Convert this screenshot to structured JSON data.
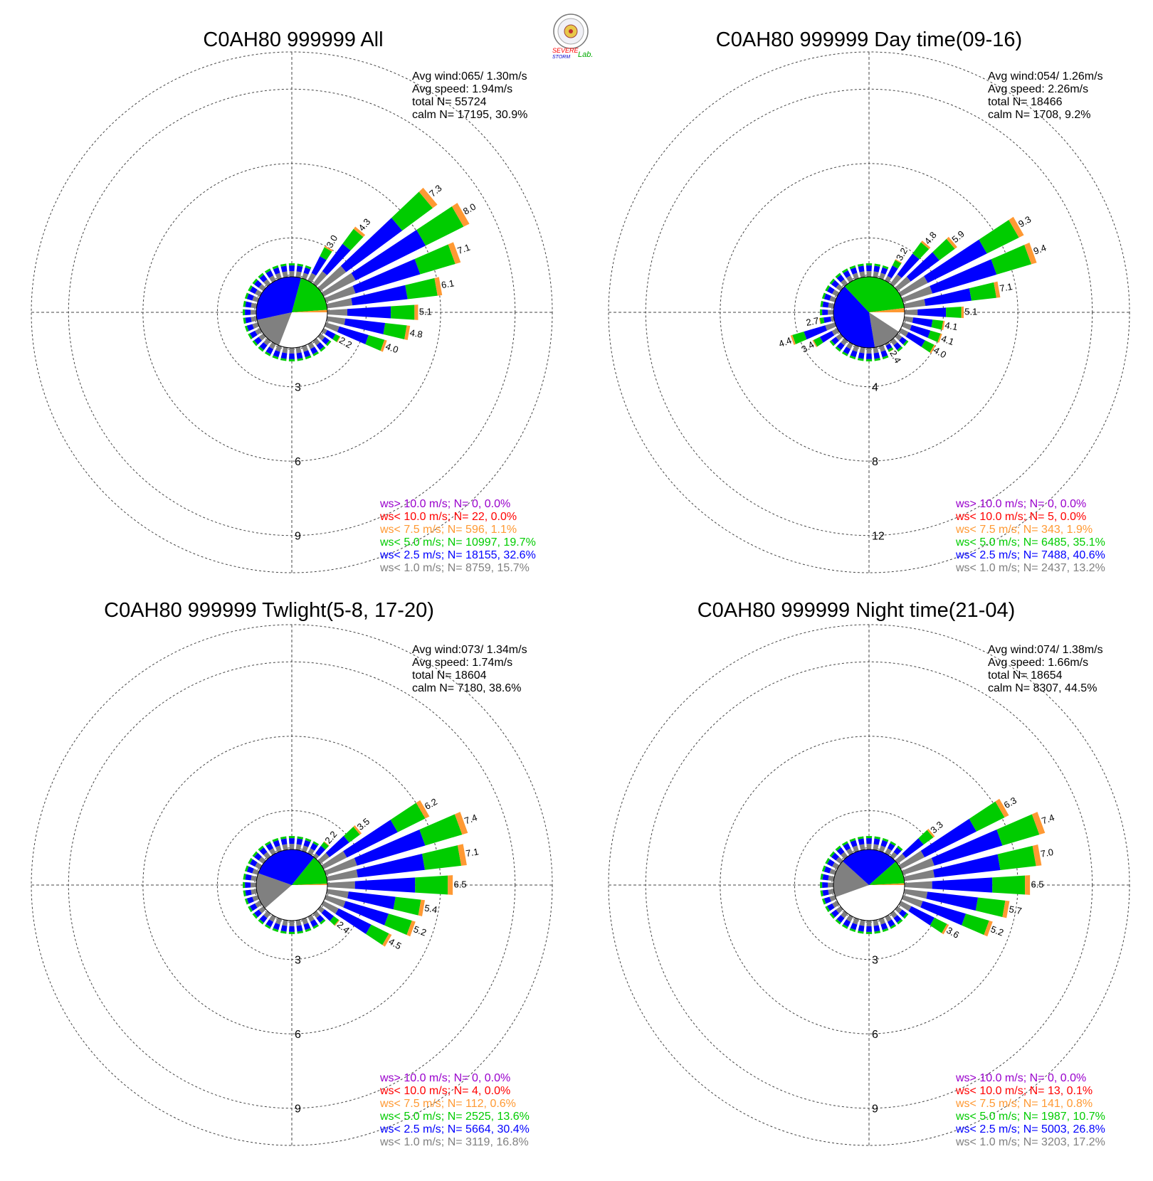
{
  "colors": {
    "calm": "#ffffff",
    "lt1": "#808080",
    "lt2_5": "#0000ff",
    "lt5": "#00cc00",
    "lt7_5": "#ff9933",
    "lt10": "#ff0000",
    "gt10": "#9900cc",
    "grid": "#444444"
  },
  "logo": {
    "text_severe": "SEVERE",
    "text_storm": "STORM",
    "text_lab": "Lab."
  },
  "chart_data": [
    {
      "type": "wind-rose",
      "title": "C0AH80 999999 All",
      "stats": [
        "Avg wind:065/ 1.30m/s",
        "Avg speed: 1.94m/s",
        "total N=       55724",
        "calm N=  17195,  30.9%"
      ],
      "rings": [
        3,
        6,
        9
      ],
      "rmax": 10.5,
      "calm_pct": 30.9,
      "calm_pie": [
        30.9,
        15.7,
        32.6,
        19.7,
        1.1
      ],
      "labeled_bars": [
        {
          "dir": 30,
          "value": 3.0,
          "label": "3.0"
        },
        {
          "dir": 40,
          "value": 4.3,
          "label": "4.3"
        },
        {
          "dir": 50,
          "value": 7.3,
          "label": "7.3"
        },
        {
          "dir": 60,
          "value": 8.0,
          "label": "8.0"
        },
        {
          "dir": 70,
          "value": 7.1,
          "label": "7.1"
        },
        {
          "dir": 80,
          "value": 6.1,
          "label": "6.1"
        },
        {
          "dir": 90,
          "value": 5.1,
          "label": "5.1"
        },
        {
          "dir": 100,
          "value": 4.8,
          "label": "4.8"
        },
        {
          "dir": 110,
          "value": 4.0,
          "label": "4.0"
        },
        {
          "dir": 120,
          "value": 2.2,
          "label": "2.2"
        }
      ],
      "legend": [
        {
          "text": "ws> 10.0 m/s; N=     0,  0.0%",
          "key": "gt10"
        },
        {
          "text": "ws< 10.0 m/s; N=    22,  0.0%",
          "key": "lt10"
        },
        {
          "text": "ws<  7.5 m/s; N=   596,  1.1%",
          "key": "lt7_5"
        },
        {
          "text": "ws<  5.0 m/s; N= 10997, 19.7%",
          "key": "lt5"
        },
        {
          "text": "ws<  2.5 m/s; N= 18155, 32.6%",
          "key": "lt2_5"
        },
        {
          "text": "ws<  1.0 m/s; N=  8759, 15.7%",
          "key": "lt1"
        }
      ]
    },
    {
      "type": "wind-rose",
      "title": "C0AH80 999999 Day time(09-16)",
      "stats": [
        "Avg wind:054/ 1.26m/s",
        "Avg speed: 2.26m/s",
        "total N=       18466",
        "calm N=   1708,   9.2%"
      ],
      "rings": [
        4,
        8,
        12
      ],
      "rmax": 14,
      "calm_pct": 9.2,
      "calm_pie": [
        9.2,
        13.2,
        40.6,
        35.1,
        1.9
      ],
      "labeled_bars": [
        {
          "dir": 30,
          "value": 3.2,
          "label": "3.2"
        },
        {
          "dir": 40,
          "value": 4.8,
          "label": "4.8"
        },
        {
          "dir": 50,
          "value": 5.9,
          "label": "5.9"
        },
        {
          "dir": 60,
          "value": 9.3,
          "label": "9.3"
        },
        {
          "dir": 70,
          "value": 9.4,
          "label": "9.4"
        },
        {
          "dir": 80,
          "value": 7.1,
          "label": "7.1"
        },
        {
          "dir": 90,
          "value": 5.1,
          "label": "5.1"
        },
        {
          "dir": 100,
          "value": 4.1,
          "label": "4.1"
        },
        {
          "dir": 110,
          "value": 4.1,
          "label": "4.1"
        },
        {
          "dir": 120,
          "value": 4.0,
          "label": "4.0"
        },
        {
          "dir": 150,
          "value": 2.4,
          "label": "2.4"
        },
        {
          "dir": 240,
          "value": 3.4,
          "label": "3.4"
        },
        {
          "dir": 250,
          "value": 4.4,
          "label": "4.4"
        },
        {
          "dir": 260,
          "value": 2.7,
          "label": "2.7"
        }
      ],
      "legend": [
        {
          "text": "ws> 10.0 m/s; N=     0,  0.0%",
          "key": "gt10"
        },
        {
          "text": "ws< 10.0 m/s; N=     5,  0.0%",
          "key": "lt10"
        },
        {
          "text": "ws<  7.5 m/s; N=   343,  1.9%",
          "key": "lt7_5"
        },
        {
          "text": "ws<  5.0 m/s; N=  6485, 35.1%",
          "key": "lt5"
        },
        {
          "text": "ws<  2.5 m/s; N=  7488, 40.6%",
          "key": "lt2_5"
        },
        {
          "text": "ws<  1.0 m/s; N=  2437, 13.2%",
          "key": "lt1"
        }
      ]
    },
    {
      "type": "wind-rose",
      "title": "C0AH80 999999 Twlight(5-8, 17-20)",
      "stats": [
        "Avg wind:073/ 1.34m/s",
        "Avg speed: 1.74m/s",
        "total N=       18604",
        "calm N=   7180,  38.6%"
      ],
      "rings": [
        3,
        6,
        9
      ],
      "rmax": 10.5,
      "calm_pct": 38.6,
      "calm_pie": [
        38.6,
        16.8,
        30.4,
        13.6,
        0.6
      ],
      "labeled_bars": [
        {
          "dir": 40,
          "value": 2.2,
          "label": "2.2"
        },
        {
          "dir": 50,
          "value": 3.5,
          "label": "3.5"
        },
        {
          "dir": 60,
          "value": 6.2,
          "label": "6.2"
        },
        {
          "dir": 70,
          "value": 7.4,
          "label": "7.4"
        },
        {
          "dir": 80,
          "value": 7.1,
          "label": "7.1"
        },
        {
          "dir": 90,
          "value": 6.5,
          "label": "6.5"
        },
        {
          "dir": 100,
          "value": 5.4,
          "label": "5.4"
        },
        {
          "dir": 110,
          "value": 5.2,
          "label": "5.2"
        },
        {
          "dir": 120,
          "value": 4.5,
          "label": "4.5"
        },
        {
          "dir": 130,
          "value": 2.4,
          "label": "2.4"
        }
      ],
      "legend": [
        {
          "text": "ws> 10.0 m/s; N=     0,  0.0%",
          "key": "gt10"
        },
        {
          "text": "ws< 10.0 m/s; N=     4,  0.0%",
          "key": "lt10"
        },
        {
          "text": "ws<  7.5 m/s; N=   112,  0.6%",
          "key": "lt7_5"
        },
        {
          "text": "ws<  5.0 m/s; N=  2525, 13.6%",
          "key": "lt5"
        },
        {
          "text": "ws<  2.5 m/s; N=  5664, 30.4%",
          "key": "lt2_5"
        },
        {
          "text": "ws<  1.0 m/s; N=  3119, 16.8%",
          "key": "lt1"
        }
      ]
    },
    {
      "type": "wind-rose",
      "title": "C0AH80 999999 Night time(21-04)",
      "stats": [
        "Avg wind:074/ 1.38m/s",
        "Avg speed: 1.66m/s",
        "total N=       18654",
        "calm N=   8307,  44.5%"
      ],
      "rings": [
        3,
        6,
        9
      ],
      "rmax": 10.5,
      "calm_pct": 44.5,
      "calm_pie": [
        44.5,
        17.2,
        26.8,
        10.7,
        0.8
      ],
      "labeled_bars": [
        {
          "dir": 50,
          "value": 3.3,
          "label": "3.3"
        },
        {
          "dir": 60,
          "value": 6.3,
          "label": "6.3"
        },
        {
          "dir": 70,
          "value": 7.4,
          "label": "7.4"
        },
        {
          "dir": 80,
          "value": 7.0,
          "label": "7.0"
        },
        {
          "dir": 90,
          "value": 6.5,
          "label": "6.5"
        },
        {
          "dir": 100,
          "value": 5.7,
          "label": "5.7"
        },
        {
          "dir": 110,
          "value": 5.2,
          "label": "5.2"
        },
        {
          "dir": 120,
          "value": 3.6,
          "label": "3.6"
        }
      ],
      "legend": [
        {
          "text": "ws> 10.0 m/s; N=     0,  0.0%",
          "key": "gt10"
        },
        {
          "text": "ws< 10.0 m/s; N=    13,  0.1%",
          "key": "lt10"
        },
        {
          "text": "ws<  7.5 m/s; N=   141,  0.8%",
          "key": "lt7_5"
        },
        {
          "text": "ws<  5.0 m/s; N=  1987, 10.7%",
          "key": "lt5"
        },
        {
          "text": "ws<  2.5 m/s; N=  5003, 26.8%",
          "key": "lt2_5"
        },
        {
          "text": "ws<  1.0 m/s; N=  3203, 17.2%",
          "key": "lt1"
        }
      ]
    }
  ]
}
